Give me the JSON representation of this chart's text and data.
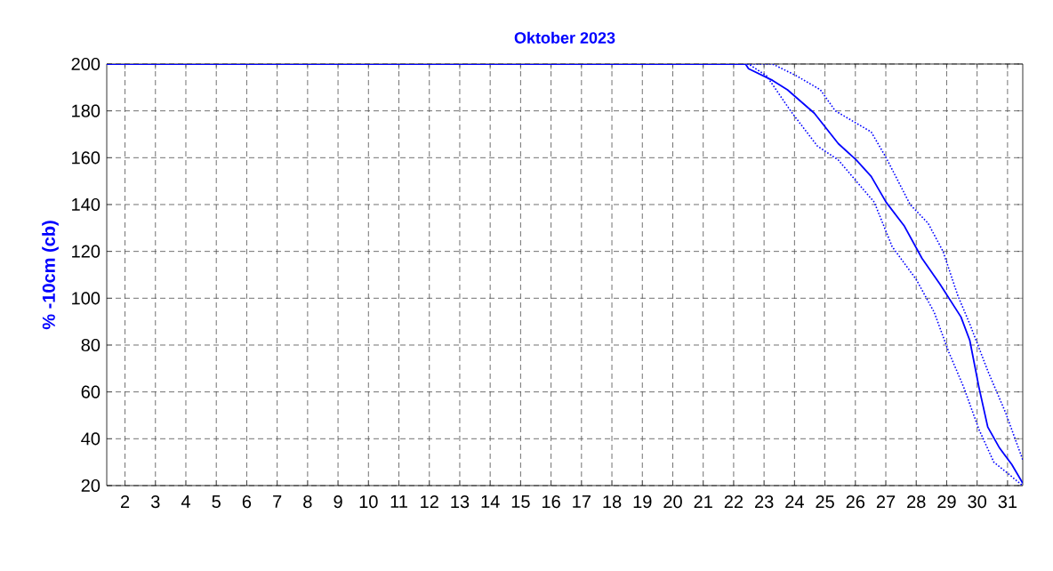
{
  "chart_data": {
    "type": "line",
    "title": "Oktober 2023",
    "ylabel": "% -10cm (cb)",
    "xlim": [
      1.4,
      31.5
    ],
    "ylim": [
      20,
      200
    ],
    "xticks": [
      2,
      3,
      4,
      5,
      6,
      7,
      8,
      9,
      10,
      11,
      12,
      13,
      14,
      15,
      16,
      17,
      18,
      19,
      20,
      21,
      22,
      23,
      24,
      25,
      26,
      27,
      28,
      29,
      30,
      31
    ],
    "yticks": [
      20,
      40,
      60,
      80,
      100,
      120,
      140,
      160,
      180,
      200
    ],
    "grid": true,
    "marker": "none",
    "series": [
      {
        "color": "#0000ff",
        "line_style": "solid",
        "x": [
          1.4,
          22.39,
          22.49,
          23.28,
          23.77,
          24.65,
          25.44,
          26.03,
          26.52,
          27.01,
          27.6,
          28.19,
          28.78,
          29.47,
          29.76,
          30.06,
          30.35,
          30.74,
          31.14,
          31.5
        ],
        "values": [
          200,
          200,
          198,
          193,
          189,
          179,
          166,
          159,
          152,
          141,
          131,
          117,
          106,
          92,
          82,
          62,
          45,
          36,
          29,
          21
        ]
      },
      {
        "color": "#0000ff",
        "line_style": "dotted",
        "x": [
          1.4,
          23.28,
          24.06,
          24.85,
          25.34,
          26.52,
          27.01,
          27.8,
          28.39,
          28.88,
          29.37,
          29.76,
          30.35,
          30.94,
          31.5
        ],
        "values": [
          200,
          200,
          195,
          189,
          180,
          171,
          160,
          140,
          132,
          120,
          101,
          89,
          69,
          51,
          31
        ]
      },
      {
        "color": "#0000ff",
        "line_style": "dotted",
        "x": [
          1.4,
          22.49,
          23.08,
          23.87,
          24.75,
          25.44,
          26.03,
          26.62,
          27.21,
          28.0,
          28.59,
          29.07,
          29.56,
          30.06,
          30.55,
          31.5
        ],
        "values": [
          200,
          200,
          195,
          180,
          165,
          159,
          150,
          141,
          122,
          108,
          94,
          77,
          62,
          44,
          30,
          20
        ]
      }
    ]
  }
}
